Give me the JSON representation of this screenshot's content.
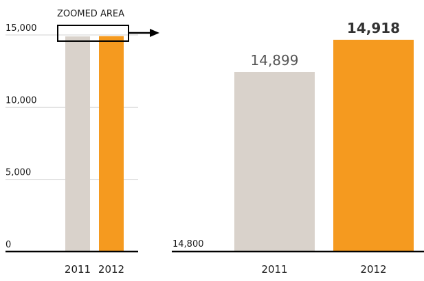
{
  "chart_data": [
    {
      "type": "bar",
      "categories": [
        "2011",
        "2012"
      ],
      "values": [
        14899,
        14918
      ],
      "ylim": [
        0,
        15000
      ],
      "yticks": [
        "0",
        "5,000",
        "10,000",
        "15,000"
      ],
      "ytick_values": [
        0,
        5000,
        10000,
        15000
      ],
      "grid": true,
      "annotation": "ZOOMED AREA",
      "colors": [
        "#d9d2cb",
        "#f59a1f"
      ]
    },
    {
      "type": "bar",
      "categories": [
        "2011",
        "2012"
      ],
      "values": [
        14899,
        14918
      ],
      "data_labels": [
        "14,899",
        "14,918"
      ],
      "ylim": [
        14800,
        14920
      ],
      "yticks": [
        "14,800"
      ],
      "ytick_values": [
        14800
      ],
      "colors": [
        "#d9d2cb",
        "#f59a1f"
      ]
    }
  ]
}
